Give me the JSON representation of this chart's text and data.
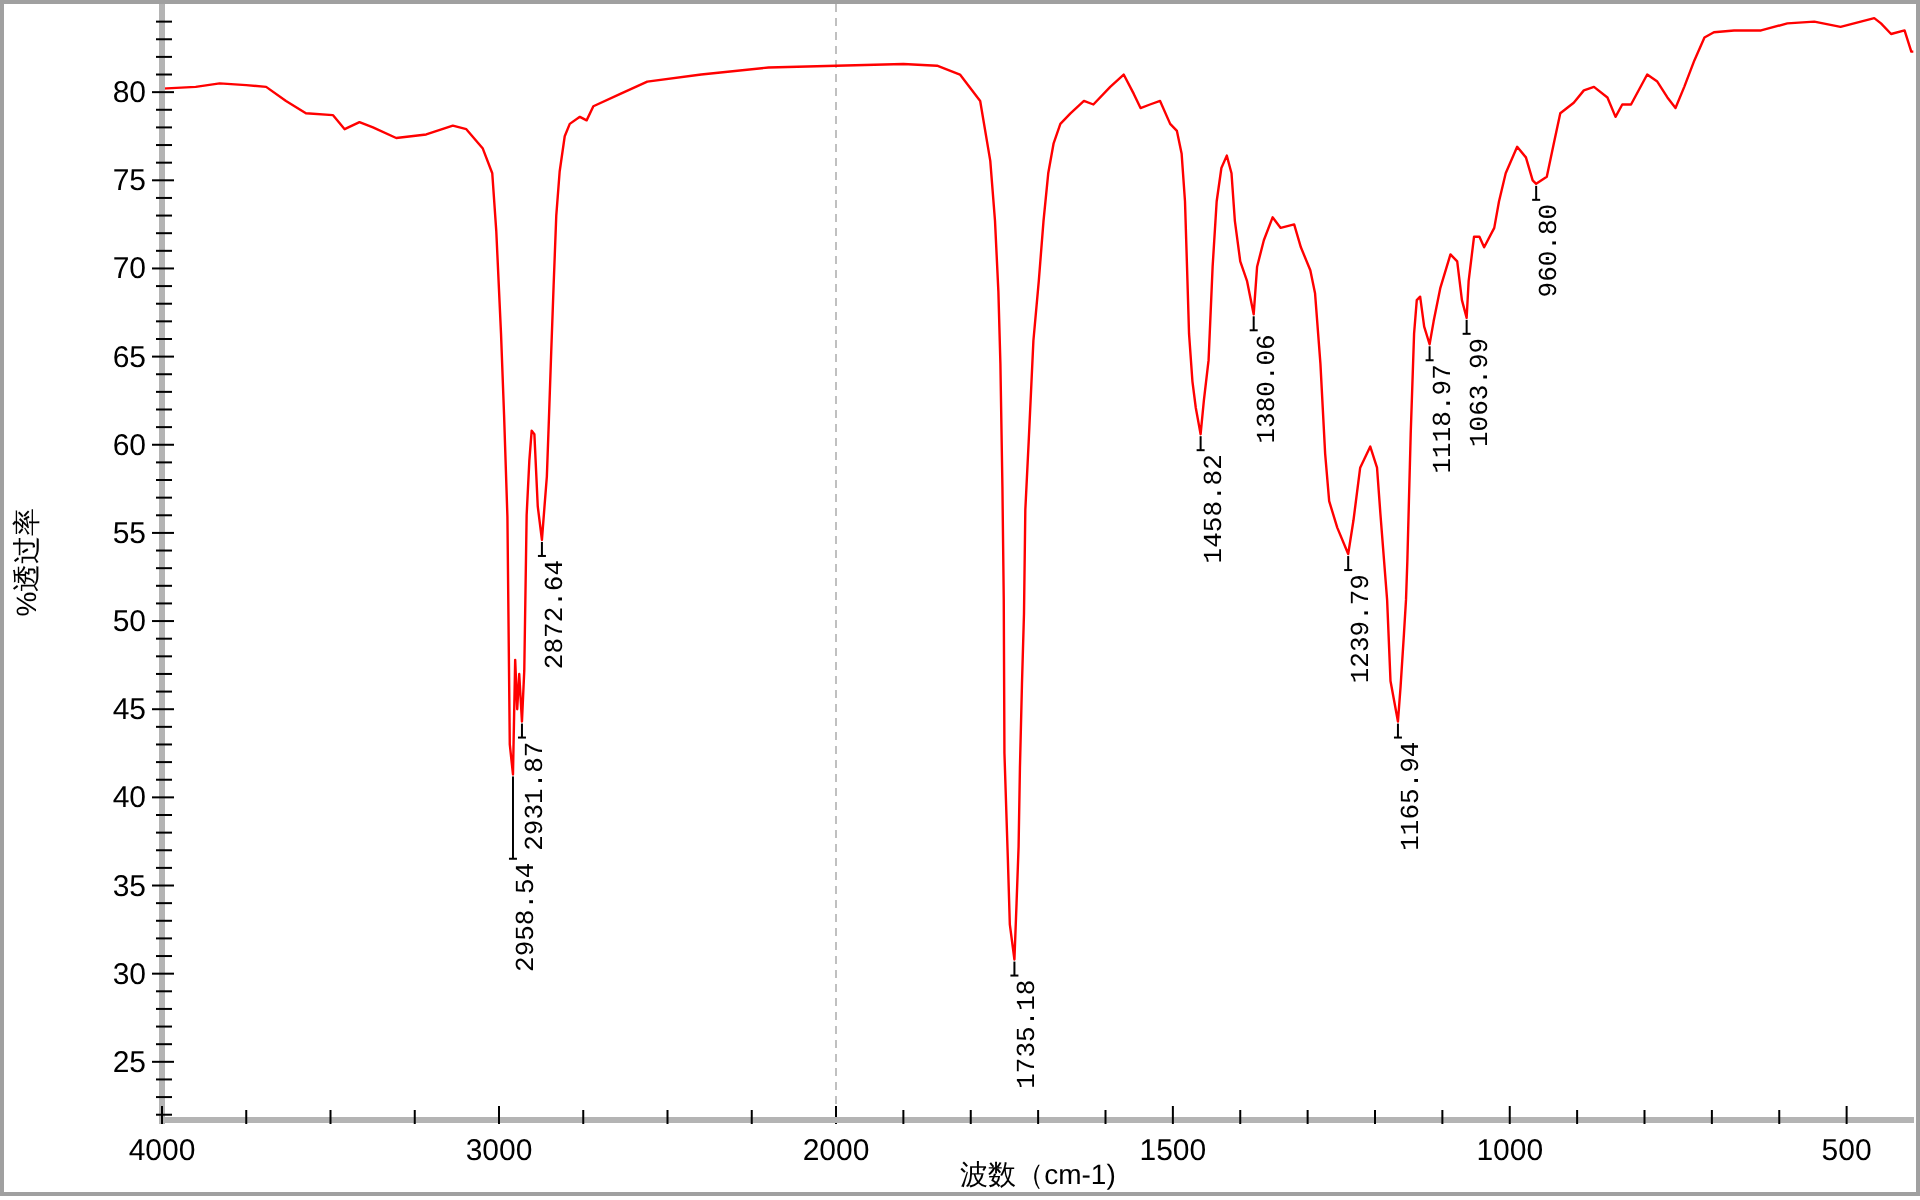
{
  "chart_data": [
    {
      "type": "line",
      "ylabel": "%透过率",
      "xlim": [
        4000,
        2000
      ],
      "ylim": [
        21.7,
        85
      ],
      "xticks": [
        4000,
        {
          "value": 3750,
          "label": null
        },
        {
          "value": 3500,
          "label": null
        },
        {
          "value": 3250,
          "label": null
        },
        3000,
        {
          "value": 2750,
          "label": null
        },
        {
          "value": 2500,
          "label": null
        },
        {
          "value": 2250,
          "label": null
        },
        2000
      ],
      "yticks": [
        {
          "value": 22,
          "label": null
        },
        {
          "value": 23,
          "label": null
        },
        {
          "value": 24,
          "label": null
        },
        25,
        {
          "value": 26,
          "label": null
        },
        {
          "value": 27,
          "label": null
        },
        {
          "value": 28,
          "label": null
        },
        {
          "value": 29,
          "label": null
        },
        30,
        {
          "value": 31,
          "label": null
        },
        {
          "value": 32,
          "label": null
        },
        {
          "value": 33,
          "label": null
        },
        {
          "value": 34,
          "label": null
        },
        35,
        {
          "value": 36,
          "label": null
        },
        {
          "value": 37,
          "label": null
        },
        {
          "value": 38,
          "label": null
        },
        {
          "value": 39,
          "label": null
        },
        40,
        {
          "value": 41,
          "label": null
        },
        {
          "value": 42,
          "label": null
        },
        {
          "value": 43,
          "label": null
        },
        {
          "value": 44,
          "label": null
        },
        45,
        {
          "value": 46,
          "label": null
        },
        {
          "value": 47,
          "label": null
        },
        {
          "value": 48,
          "label": null
        },
        {
          "value": 49,
          "label": null
        },
        50,
        {
          "value": 51,
          "label": null
        },
        {
          "value": 52,
          "label": null
        },
        {
          "value": 53,
          "label": null
        },
        {
          "value": 54,
          "label": null
        },
        55,
        {
          "value": 56,
          "label": null
        },
        {
          "value": 57,
          "label": null
        },
        {
          "value": 58,
          "label": null
        },
        {
          "value": 59,
          "label": null
        },
        60,
        {
          "value": 61,
          "label": null
        },
        {
          "value": 62,
          "label": null
        },
        {
          "value": 63,
          "label": null
        },
        {
          "value": 64,
          "label": null
        },
        65,
        {
          "value": 66,
          "label": null
        },
        {
          "value": 67,
          "label": null
        },
        {
          "value": 68,
          "label": null
        },
        {
          "value": 69,
          "label": null
        },
        70,
        {
          "value": 71,
          "label": null
        },
        {
          "value": 72,
          "label": null
        },
        {
          "value": 73,
          "label": null
        },
        {
          "value": 74,
          "label": null
        },
        75,
        {
          "value": 76,
          "label": null
        },
        {
          "value": 77,
          "label": null
        },
        {
          "value": 78,
          "label": null
        },
        {
          "value": 79,
          "label": null
        },
        80,
        {
          "value": 81,
          "label": null
        },
        {
          "value": 82,
          "label": null
        },
        {
          "value": 83,
          "label": null
        },
        {
          "value": 84,
          "label": null
        }
      ],
      "ref_lines": [
        {
          "axis": "x",
          "value": 2000,
          "color": "#c0c0c0",
          "line_style": "dashed"
        }
      ],
      "series": [
        {
          "color": "#ff0000",
          "x": [
            4000,
            3900,
            3829,
            3750,
            3691,
            3632,
            3573,
            3493,
            3458,
            3414,
            3374,
            3305,
            3216,
            3137,
            3097,
            3048,
            3020,
            3008,
            2994,
            2985,
            2975,
            2968,
            2958.54,
            2952,
            2946,
            2940,
            2931.87,
            2925,
            2918,
            2910,
            2903,
            2895,
            2885,
            2872.64,
            2865,
            2858,
            2852,
            2845,
            2838,
            2830,
            2820,
            2805,
            2790,
            2760,
            2740,
            2720,
            2640,
            2560,
            2400,
            2200,
            2000
          ],
          "values": [
            80.2,
            80.3,
            80.5,
            80.4,
            80.3,
            79.5,
            78.8,
            78.7,
            77.9,
            78.3,
            78.0,
            77.4,
            77.6,
            78.1,
            77.9,
            76.8,
            75.4,
            72.1,
            66.3,
            61.7,
            55.9,
            43.0,
            41.3,
            47.8,
            45.0,
            47.0,
            44.3,
            47.2,
            56.0,
            59.1,
            60.8,
            60.6,
            56.5,
            54.6,
            56.5,
            58.2,
            61.4,
            65.3,
            69.0,
            73.0,
            75.5,
            77.5,
            78.2,
            78.6,
            78.4,
            79.2,
            79.9,
            80.6,
            81.0,
            81.4,
            81.5
          ]
        }
      ],
      "annotations": [
        {
          "text": "2958.54",
          "x": 2958.54,
          "y": 41.3
        },
        {
          "text": "2931.87",
          "x": 2931.87,
          "y": 44.3
        },
        {
          "text": "2872.64",
          "x": 2872.64,
          "y": 54.6
        }
      ]
    },
    {
      "type": "line",
      "xlabel": "波数（cm-1)",
      "xlim": [
        2000,
        400
      ],
      "ylim": [
        21.7,
        85
      ],
      "tick_labels": "x",
      "xticks": [
        {
          "value": 1900,
          "label": null
        },
        {
          "value": 1800,
          "label": null
        },
        {
          "value": 1700,
          "label": null
        },
        {
          "value": 1600,
          "label": null
        },
        1500,
        {
          "value": 1400,
          "label": null
        },
        {
          "value": 1300,
          "label": null
        },
        {
          "value": 1200,
          "label": null
        },
        {
          "value": 1100,
          "label": null
        },
        1000,
        {
          "value": 900,
          "label": null
        },
        {
          "value": 800,
          "label": null
        },
        {
          "value": 700,
          "label": null
        },
        {
          "value": 600,
          "label": null
        },
        500
      ],
      "series": [
        {
          "color": "#ff0000",
          "x": [
            2000,
            1900,
            1850,
            1816,
            1786,
            1771,
            1764,
            1759,
            1756,
            1753,
            1751,
            1750,
            1745,
            1742,
            1735.18,
            1732,
            1729,
            1727,
            1724,
            1721,
            1719,
            1714,
            1707,
            1699,
            1692,
            1685,
            1677,
            1667,
            1652,
            1632,
            1618,
            1593,
            1573,
            1558,
            1548,
            1534,
            1519,
            1504,
            1494,
            1487,
            1482,
            1479,
            1476,
            1471,
            1466,
            1458.82,
            1454,
            1447,
            1441,
            1435,
            1428,
            1420,
            1413,
            1408,
            1400,
            1390,
            1380.06,
            1375,
            1365,
            1352,
            1340,
            1320,
            1310,
            1296,
            1289,
            1281,
            1274,
            1268,
            1256,
            1239.79,
            1232,
            1222,
            1207,
            1197,
            1192,
            1182,
            1177,
            1165.94,
            1162,
            1157,
            1154,
            1152,
            1147,
            1142,
            1138,
            1133,
            1127,
            1118.97,
            1113,
            1103,
            1088,
            1078,
            1071,
            1063.99,
            1061,
            1053,
            1045,
            1038,
            1023,
            1016,
            1006,
            989,
            976,
            966,
            960.8,
            945,
            934,
            925,
            915,
            905,
            890,
            875,
            855,
            843,
            833,
            820,
            796,
            781,
            766,
            754,
            741,
            726,
            711,
            697,
            667,
            627,
            588,
            548,
            509,
            459,
            449,
            434,
            414,
            404,
            401
          ],
          "values": [
            81.5,
            81.6,
            81.5,
            81.0,
            79.5,
            76.1,
            72.7,
            68.7,
            64.6,
            57.6,
            51.2,
            42.5,
            36.6,
            32.8,
            30.8,
            34.0,
            37.2,
            41.7,
            46.4,
            50.4,
            56.3,
            60.2,
            65.9,
            69.3,
            72.7,
            75.4,
            77.1,
            78.2,
            78.8,
            79.5,
            79.3,
            80.3,
            81.0,
            79.9,
            79.1,
            79.3,
            79.5,
            78.2,
            77.8,
            76.5,
            73.8,
            70.1,
            66.3,
            63.6,
            62.1,
            60.6,
            62.5,
            64.8,
            70.1,
            73.8,
            75.7,
            76.4,
            75.4,
            72.7,
            70.4,
            69.3,
            67.4,
            70.1,
            71.6,
            72.9,
            72.3,
            72.5,
            71.2,
            69.9,
            68.6,
            64.6,
            59.5,
            56.8,
            55.3,
            53.8,
            55.7,
            58.7,
            59.9,
            58.7,
            56.1,
            51.2,
            46.6,
            44.3,
            46.3,
            49.3,
            51.2,
            53.4,
            60.6,
            66.3,
            68.2,
            68.4,
            66.7,
            65.7,
            67.0,
            68.9,
            70.8,
            70.4,
            68.2,
            67.2,
            69.3,
            71.8,
            71.8,
            71.2,
            72.3,
            73.8,
            75.4,
            76.9,
            76.3,
            75.0,
            74.8,
            75.2,
            77.2,
            78.8,
            79.1,
            79.4,
            80.1,
            80.3,
            79.7,
            78.6,
            79.3,
            79.3,
            81.0,
            80.6,
            79.7,
            79.1,
            80.3,
            81.8,
            83.1,
            83.4,
            83.5,
            83.5,
            83.9,
            84.0,
            83.7,
            84.2,
            83.9,
            83.3,
            83.5,
            82.3,
            82.3
          ]
        }
      ],
      "annotations": [
        {
          "text": "1735.18",
          "x": 1735.18,
          "y": 30.8
        },
        {
          "text": "1458.82",
          "x": 1458.82,
          "y": 60.6
        },
        {
          "text": "1380.06",
          "x": 1380.06,
          "y": 67.4
        },
        {
          "text": "1239.79",
          "x": 1239.79,
          "y": 53.8
        },
        {
          "text": "1165.94",
          "x": 1165.94,
          "y": 44.3
        },
        {
          "text": "1118.97",
          "x": 1118.97,
          "y": 65.7
        },
        {
          "text": "1063.99",
          "x": 1063.99,
          "y": 67.2
        },
        {
          "text": "960.80",
          "x": 960.8,
          "y": 74.8
        }
      ]
    }
  ]
}
